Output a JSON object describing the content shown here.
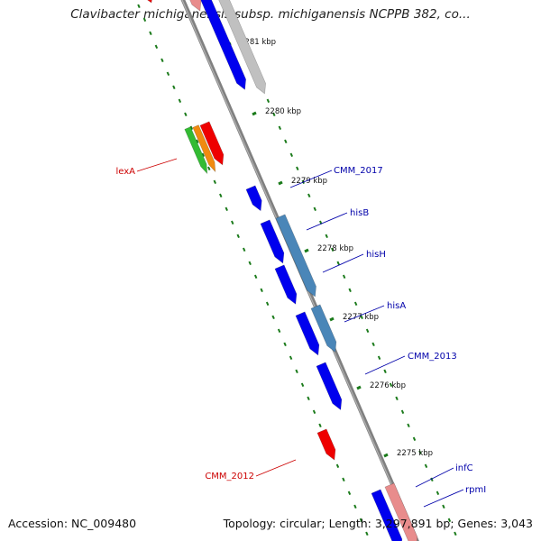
{
  "map": {
    "title": "Clavibacter michiganensis subsp. michiganensis NCPPB 382, co...",
    "accession": "Accession: NC_009480",
    "summary": "Topology: circular; Length: 3,297,891 bp; Genes: 3,043",
    "colors": {
      "backbone": "#808080",
      "tick": "#1a7a1a",
      "gene_blue": "#0000ee",
      "gene_steel": "#4a86b8",
      "gene_gray": "#c0c0c0",
      "gene_red": "#ee0000",
      "gene_pink": "#e88c8c",
      "gene_orange": "#f08a10",
      "gene_green": "#33bb33",
      "label_blue": "#0000aa",
      "label_red": "#cc0000"
    },
    "scale_labels": [
      "2281 kbp",
      "2280 kbp",
      "2279 kbp",
      "2278 kbp",
      "2277 kbp",
      "2276 kbp",
      "2275 kbp"
    ],
    "gene_labels": [
      {
        "text": "CMM_2017",
        "color": "blue"
      },
      {
        "text": "hisB",
        "color": "blue"
      },
      {
        "text": "hisH",
        "color": "blue"
      },
      {
        "text": "hisA",
        "color": "blue"
      },
      {
        "text": "CMM_2013",
        "color": "blue"
      },
      {
        "text": "infC",
        "color": "blue"
      },
      {
        "text": "rpmI",
        "color": "blue"
      },
      {
        "text": "lexA",
        "color": "red"
      },
      {
        "text": "CMM_2012",
        "color": "red"
      }
    ]
  }
}
